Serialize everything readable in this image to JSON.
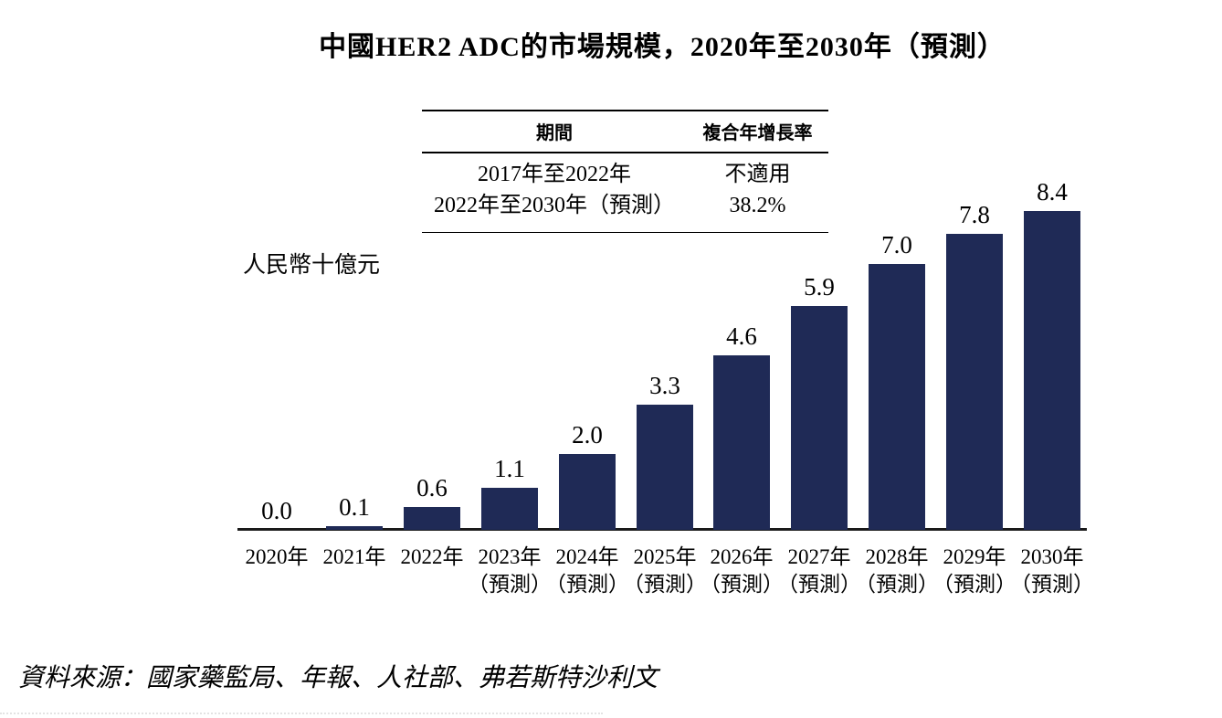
{
  "title": "中國HER2 ADC的市場規模，2020年至2030年（預測）",
  "unit_label": "人民幣十億元",
  "source_note": "資料來源：國家藥監局、年報、人社部、弗若斯特沙利文",
  "cagr_table": {
    "headers": [
      "期間",
      "複合年增長率"
    ],
    "rows": [
      {
        "period": "2017年至2022年",
        "cagr": "不適用"
      },
      {
        "period": "2022年至2030年（預測）",
        "cagr": "38.2%"
      }
    ]
  },
  "forecast_note": "（預測）",
  "colors": {
    "bar": "#1f2a56",
    "axis": "#1a1a1a",
    "text": "#000000"
  },
  "chart_data": {
    "type": "bar",
    "title": "中國HER2 ADC的市場規模，2020年至2030年（預測）",
    "categories": [
      "2020年",
      "2021年",
      "2022年",
      "2023年（預測）",
      "2024年（預測）",
      "2025年（預測）",
      "2026年（預測）",
      "2027年（預測）",
      "2028年（預測）",
      "2029年（預測）",
      "2030年（預測）"
    ],
    "values": [
      0.0,
      0.1,
      0.6,
      1.1,
      2.0,
      3.3,
      4.6,
      5.9,
      7.0,
      7.8,
      8.4
    ],
    "data_labels": [
      "0.0",
      "0.1",
      "0.6",
      "1.1",
      "2.0",
      "3.3",
      "4.6",
      "5.9",
      "7.0",
      "7.8",
      "8.4"
    ],
    "xlabel": "",
    "ylabel": "人民幣十億元",
    "ylim": [
      0,
      9
    ],
    "grid": false,
    "legend": "none",
    "bar_color": "#1f2a56"
  }
}
